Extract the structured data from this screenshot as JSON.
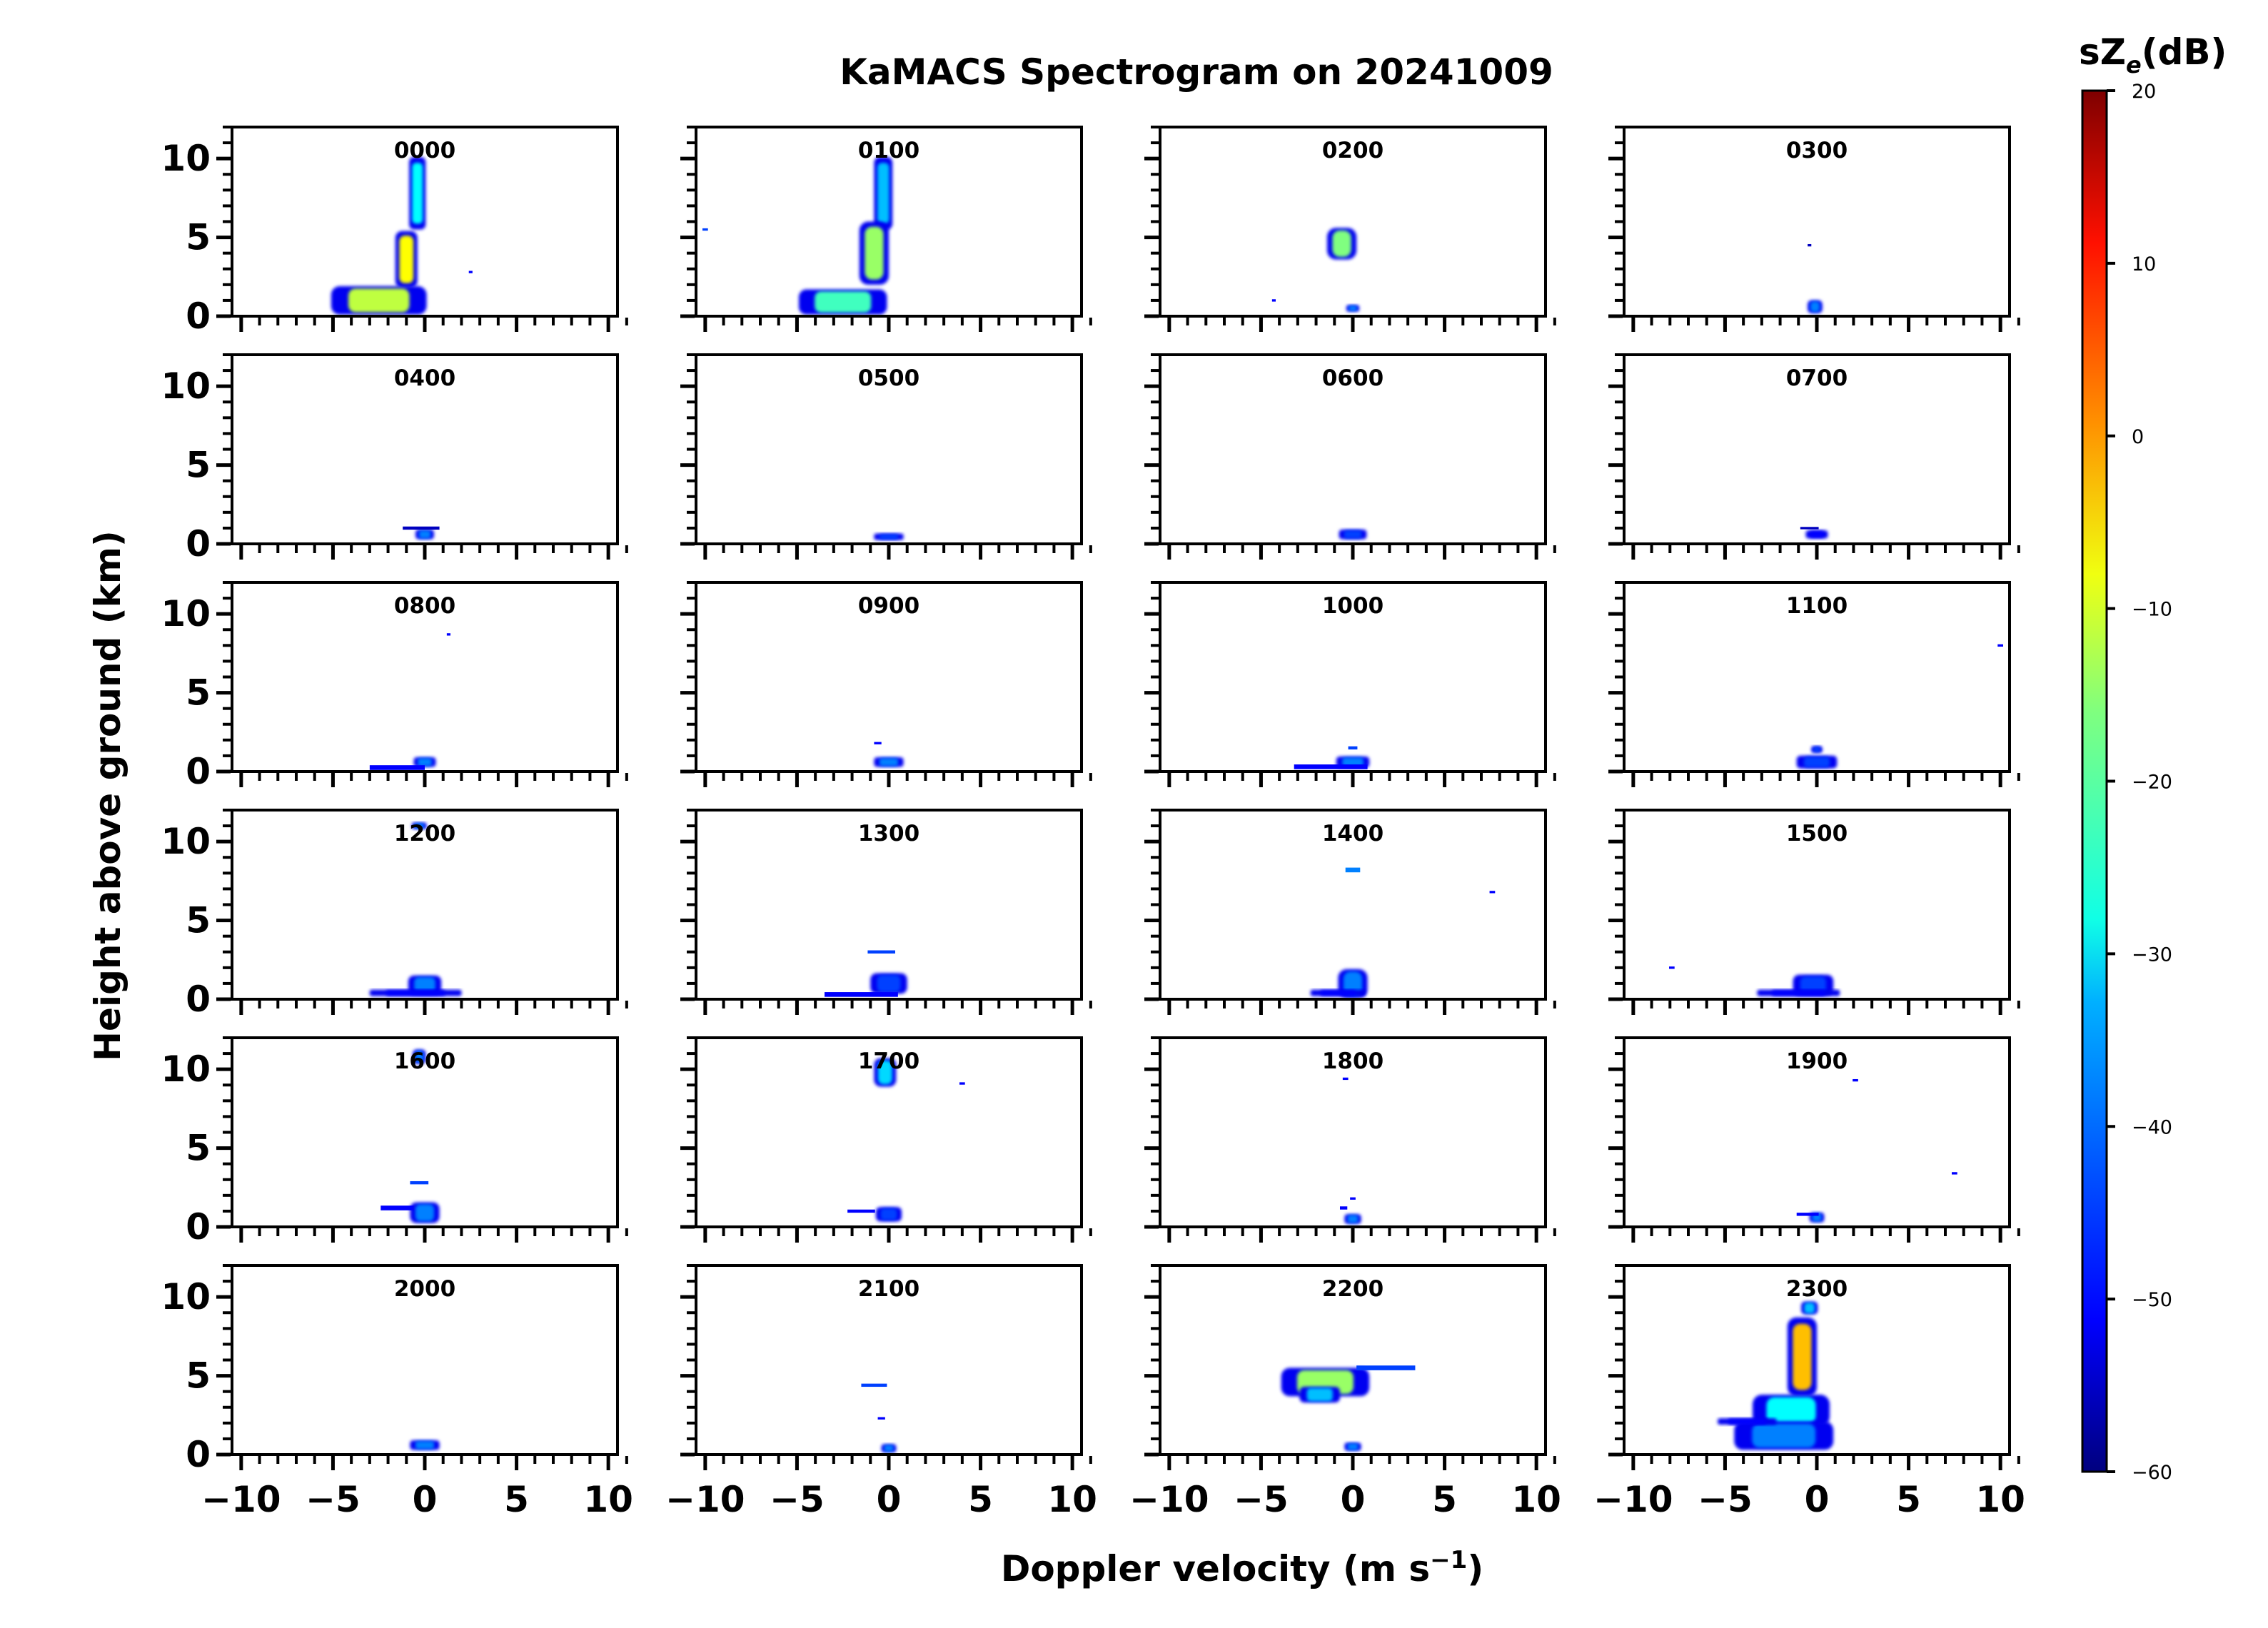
{
  "chart_data": {
    "type": "spectrogram-grid",
    "title": "KaMACS Spectrogram on 20241009",
    "xlabel": "Doppler velocity (m s",
    "xlabel_sup": "−1",
    "xlabel_close": ")",
    "ylabel": "Height above ground (km)",
    "xlim": [
      -10.5,
      10.5
    ],
    "ylim": [
      0,
      12
    ],
    "xticks": [
      -10,
      -5,
      0,
      5,
      10
    ],
    "xtick_labels": [
      "−10",
      "−5",
      "0",
      "5",
      "10"
    ],
    "yticks": [
      0,
      5,
      10
    ],
    "ytick_labels": [
      "0",
      "5",
      "10"
    ],
    "colorbar": {
      "label_main": "sZ",
      "label_sub": "e",
      "label_unit": "(dB)",
      "range": [
        -60,
        20
      ],
      "ticks": [
        20,
        10,
        0,
        -10,
        -20,
        -30,
        -40,
        -50,
        -60
      ],
      "tick_labels": [
        "20",
        "10",
        "0",
        "−10",
        "−20",
        "−30",
        "−40",
        "−50",
        "−60"
      ],
      "colormap": "jet",
      "colors": [
        "#00007f",
        "#0000ff",
        "#007fff",
        "#00ffff",
        "#7fff7f",
        "#ffff00",
        "#ff7f00",
        "#ff0000",
        "#7f0000"
      ]
    },
    "panels": [
      {
        "label": "0000",
        "blobs": [
          {
            "x": -0.4,
            "y": 7.8,
            "w": 0.9,
            "h": 4.6,
            "dB": -30
          },
          {
            "x": -1.0,
            "y": 3.6,
            "w": 1.2,
            "h": 3.6,
            "dB": -10
          },
          {
            "x": -2.5,
            "y": 1.0,
            "w": 5.2,
            "h": 1.8,
            "dB": -15
          },
          {
            "x": 2.5,
            "y": 2.8,
            "w": 0.2,
            "h": 0.15,
            "dB": -50
          }
        ]
      },
      {
        "label": "0100",
        "blobs": [
          {
            "x": -0.3,
            "y": 7.8,
            "w": 1.0,
            "h": 4.6,
            "dB": -35
          },
          {
            "x": -0.8,
            "y": 4.0,
            "w": 1.6,
            "h": 4.0,
            "dB": -18
          },
          {
            "x": -2.5,
            "y": 0.9,
            "w": 4.8,
            "h": 1.6,
            "dB": -25
          },
          {
            "x": -10.0,
            "y": 5.5,
            "w": 0.3,
            "h": 0.15,
            "dB": -45
          }
        ]
      },
      {
        "label": "0200",
        "blobs": [
          {
            "x": -0.6,
            "y": 4.6,
            "w": 1.6,
            "h": 2.0,
            "dB": -20
          },
          {
            "x": 0.0,
            "y": 0.5,
            "w": 0.7,
            "h": 0.4,
            "dB": -40
          },
          {
            "x": -4.3,
            "y": 1.0,
            "w": 0.2,
            "h": 0.15,
            "dB": -50
          }
        ]
      },
      {
        "label": "0300",
        "blobs": [
          {
            "x": -0.1,
            "y": 0.6,
            "w": 0.8,
            "h": 0.8,
            "dB": -40
          },
          {
            "x": -0.4,
            "y": 4.5,
            "w": 0.2,
            "h": 0.15,
            "dB": -55
          }
        ]
      },
      {
        "label": "0400",
        "blobs": [
          {
            "x": 0.0,
            "y": 0.6,
            "w": 1.0,
            "h": 0.6,
            "dB": -40
          },
          {
            "x": -0.2,
            "y": 1.0,
            "w": 2.0,
            "h": 0.2,
            "dB": -55
          }
        ]
      },
      {
        "label": "0500",
        "blobs": [
          {
            "x": 0.0,
            "y": 0.45,
            "w": 1.6,
            "h": 0.4,
            "dB": -45
          }
        ]
      },
      {
        "label": "0600",
        "blobs": [
          {
            "x": 0.0,
            "y": 0.6,
            "w": 1.5,
            "h": 0.6,
            "dB": -45
          }
        ]
      },
      {
        "label": "0700",
        "blobs": [
          {
            "x": 0.0,
            "y": 0.6,
            "w": 1.2,
            "h": 0.5,
            "dB": -50
          },
          {
            "x": -0.4,
            "y": 1.0,
            "w": 1.0,
            "h": 0.15,
            "dB": -55
          }
        ]
      },
      {
        "label": "0800",
        "blobs": [
          {
            "x": 0.0,
            "y": 0.6,
            "w": 1.2,
            "h": 0.6,
            "dB": -40
          },
          {
            "x": -1.5,
            "y": 0.25,
            "w": 3.0,
            "h": 0.3,
            "dB": -50
          },
          {
            "x": 1.3,
            "y": 8.7,
            "w": 0.2,
            "h": 0.15,
            "dB": -50
          }
        ]
      },
      {
        "label": "0900",
        "blobs": [
          {
            "x": 0.0,
            "y": 0.6,
            "w": 1.6,
            "h": 0.6,
            "dB": -40
          },
          {
            "x": -0.6,
            "y": 1.8,
            "w": 0.4,
            "h": 0.15,
            "dB": -50
          }
        ]
      },
      {
        "label": "1000",
        "blobs": [
          {
            "x": 0.0,
            "y": 0.6,
            "w": 1.8,
            "h": 0.7,
            "dB": -40
          },
          {
            "x": -1.2,
            "y": 0.3,
            "w": 4.0,
            "h": 0.3,
            "dB": -50
          },
          {
            "x": 0.0,
            "y": 1.5,
            "w": 0.5,
            "h": 0.2,
            "dB": -45
          }
        ]
      },
      {
        "label": "1100",
        "blobs": [
          {
            "x": 0.0,
            "y": 0.6,
            "w": 2.2,
            "h": 0.8,
            "dB": -45
          },
          {
            "x": 0.0,
            "y": 1.4,
            "w": 0.6,
            "h": 0.4,
            "dB": -45
          },
          {
            "x": 10.0,
            "y": 8.0,
            "w": 0.3,
            "h": 0.15,
            "dB": -50
          }
        ]
      },
      {
        "label": "1200",
        "blobs": [
          {
            "x": 0.0,
            "y": 0.9,
            "w": 1.8,
            "h": 1.2,
            "dB": -40
          },
          {
            "x": -0.5,
            "y": 0.4,
            "w": 5.0,
            "h": 0.4,
            "dB": -50
          },
          {
            "x": -0.3,
            "y": 11.0,
            "w": 0.8,
            "h": 0.4,
            "dB": -40
          }
        ]
      },
      {
        "label": "1300",
        "blobs": [
          {
            "x": 0.0,
            "y": 1.0,
            "w": 2.0,
            "h": 1.3,
            "dB": -45
          },
          {
            "x": -1.5,
            "y": 0.3,
            "w": 4.0,
            "h": 0.3,
            "dB": -50
          },
          {
            "x": -0.4,
            "y": 3.0,
            "w": 1.5,
            "h": 0.2,
            "dB": -45
          }
        ]
      },
      {
        "label": "1400",
        "blobs": [
          {
            "x": 0.0,
            "y": 1.0,
            "w": 1.6,
            "h": 1.8,
            "dB": -40
          },
          {
            "x": -0.8,
            "y": 0.4,
            "w": 3.0,
            "h": 0.4,
            "dB": -50
          },
          {
            "x": 0.0,
            "y": 8.2,
            "w": 0.8,
            "h": 0.3,
            "dB": -40
          },
          {
            "x": 7.6,
            "y": 6.8,
            "w": 0.3,
            "h": 0.15,
            "dB": -50
          }
        ]
      },
      {
        "label": "1500",
        "blobs": [
          {
            "x": -0.2,
            "y": 0.9,
            "w": 2.2,
            "h": 1.3,
            "dB": -45
          },
          {
            "x": -1.0,
            "y": 0.4,
            "w": 4.5,
            "h": 0.4,
            "dB": -50
          },
          {
            "x": -7.9,
            "y": 2.0,
            "w": 0.3,
            "h": 0.15,
            "dB": -50
          }
        ]
      },
      {
        "label": "1600",
        "blobs": [
          {
            "x": 0.0,
            "y": 0.9,
            "w": 1.6,
            "h": 1.3,
            "dB": -40
          },
          {
            "x": -1.5,
            "y": 1.2,
            "w": 1.8,
            "h": 0.3,
            "dB": -50
          },
          {
            "x": -0.3,
            "y": 2.8,
            "w": 1.0,
            "h": 0.2,
            "dB": -45
          },
          {
            "x": -0.3,
            "y": 10.8,
            "w": 0.7,
            "h": 0.9,
            "dB": -40
          }
        ]
      },
      {
        "label": "1700",
        "blobs": [
          {
            "x": -0.2,
            "y": 9.8,
            "w": 1.2,
            "h": 1.8,
            "dB": -33
          },
          {
            "x": 0.0,
            "y": 0.8,
            "w": 1.4,
            "h": 0.9,
            "dB": -45
          },
          {
            "x": -1.5,
            "y": 1.0,
            "w": 1.5,
            "h": 0.2,
            "dB": -50
          },
          {
            "x": 4.0,
            "y": 9.1,
            "w": 0.3,
            "h": 0.15,
            "dB": -50
          }
        ]
      },
      {
        "label": "1800",
        "blobs": [
          {
            "x": 0.0,
            "y": 0.5,
            "w": 0.9,
            "h": 0.6,
            "dB": -40
          },
          {
            "x": -0.5,
            "y": 1.2,
            "w": 0.4,
            "h": 0.2,
            "dB": -50
          },
          {
            "x": 0.0,
            "y": 1.8,
            "w": 0.3,
            "h": 0.15,
            "dB": -50
          },
          {
            "x": -0.4,
            "y": 9.4,
            "w": 0.3,
            "h": 0.15,
            "dB": -50
          }
        ]
      },
      {
        "label": "1900",
        "blobs": [
          {
            "x": 0.0,
            "y": 0.6,
            "w": 0.8,
            "h": 0.6,
            "dB": -40
          },
          {
            "x": -0.5,
            "y": 0.8,
            "w": 1.2,
            "h": 0.2,
            "dB": -50
          },
          {
            "x": 2.1,
            "y": 9.3,
            "w": 0.3,
            "h": 0.15,
            "dB": -50
          },
          {
            "x": 7.5,
            "y": 3.4,
            "w": 0.3,
            "h": 0.15,
            "dB": -50
          }
        ]
      },
      {
        "label": "2000",
        "blobs": [
          {
            "x": 0.0,
            "y": 0.6,
            "w": 1.6,
            "h": 0.6,
            "dB": -40
          }
        ]
      },
      {
        "label": "2100",
        "blobs": [
          {
            "x": 0.0,
            "y": 0.4,
            "w": 0.8,
            "h": 0.5,
            "dB": -40
          },
          {
            "x": -0.8,
            "y": 4.4,
            "w": 1.4,
            "h": 0.2,
            "dB": -45
          },
          {
            "x": -0.4,
            "y": 2.3,
            "w": 0.4,
            "h": 0.15,
            "dB": -50
          }
        ]
      },
      {
        "label": "2200",
        "blobs": [
          {
            "x": -1.5,
            "y": 4.6,
            "w": 4.8,
            "h": 1.8,
            "dB": -18
          },
          {
            "x": 1.8,
            "y": 5.5,
            "w": 3.2,
            "h": 0.3,
            "dB": -45
          },
          {
            "x": -1.8,
            "y": 3.8,
            "w": 2.2,
            "h": 1.0,
            "dB": -35
          },
          {
            "x": 0.0,
            "y": 0.5,
            "w": 0.9,
            "h": 0.5,
            "dB": -40
          }
        ]
      },
      {
        "label": "2300",
        "blobs": [
          {
            "x": -0.8,
            "y": 6.2,
            "w": 1.6,
            "h": 5.0,
            "dB": -5
          },
          {
            "x": -1.4,
            "y": 2.8,
            "w": 4.2,
            "h": 2.0,
            "dB": -30
          },
          {
            "x": -1.8,
            "y": 1.2,
            "w": 5.4,
            "h": 1.8,
            "dB": -40
          },
          {
            "x": -3.8,
            "y": 2.1,
            "w": 3.2,
            "h": 0.4,
            "dB": -50
          },
          {
            "x": -0.4,
            "y": 9.3,
            "w": 0.9,
            "h": 0.8,
            "dB": -35
          }
        ]
      }
    ]
  }
}
